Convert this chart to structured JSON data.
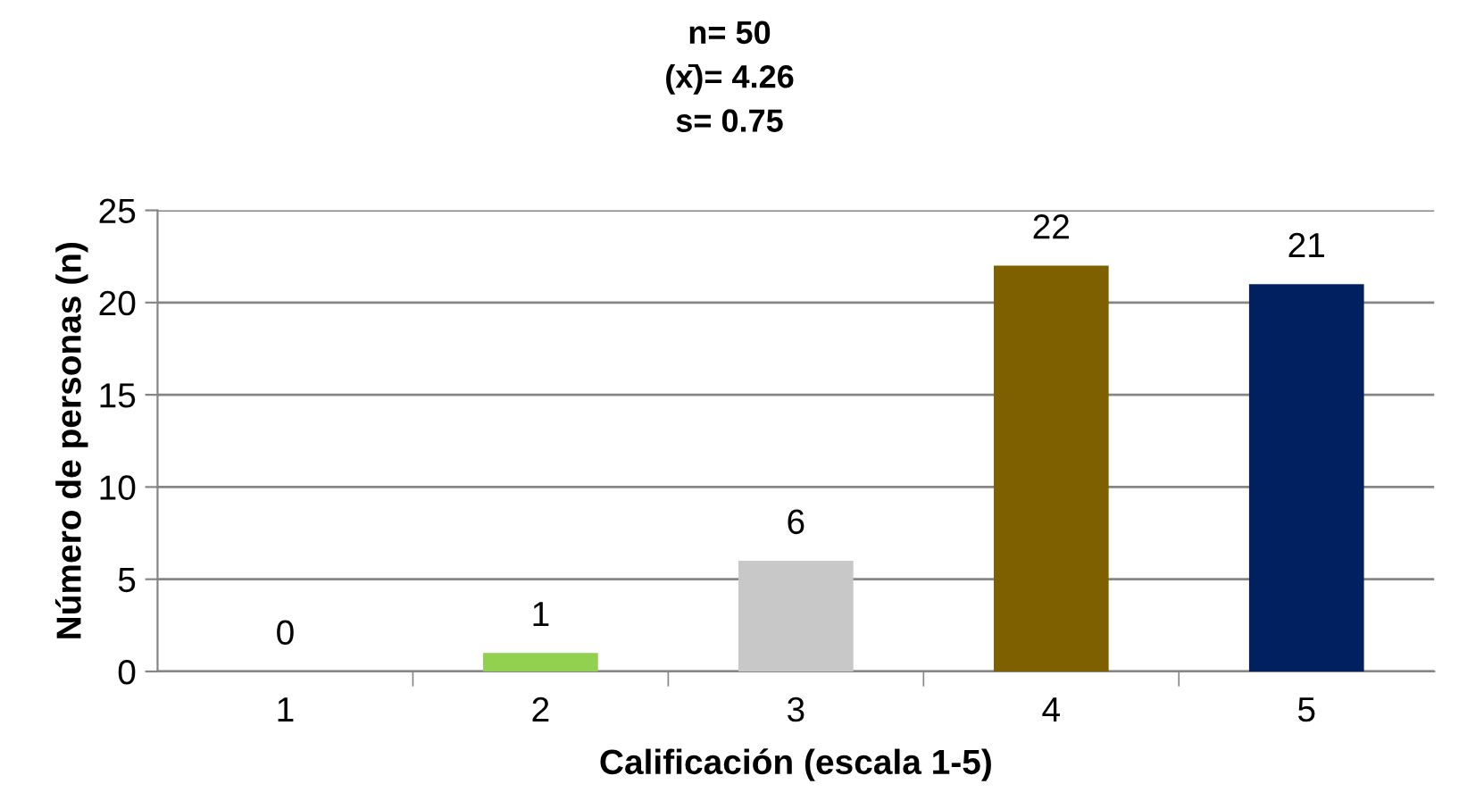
{
  "chart_data": {
    "type": "bar",
    "title": "n= 50\n(x̄)= 4.26\ns= 0.75",
    "xlabel": "Calificación (escala 1-5)",
    "ylabel": "Número de personas (n)",
    "categories": [
      "1",
      "2",
      "3",
      "4",
      "5"
    ],
    "values": [
      0,
      1,
      6,
      22,
      21
    ],
    "colors": [
      "#4f81bd",
      "#92d050",
      "#c8c8c8",
      "#7f6000",
      "#002060"
    ],
    "ylim": [
      0,
      25
    ],
    "yticks": [
      0,
      5,
      10,
      15,
      20,
      25
    ],
    "grid": "y",
    "data_labels": true,
    "legend": false
  }
}
